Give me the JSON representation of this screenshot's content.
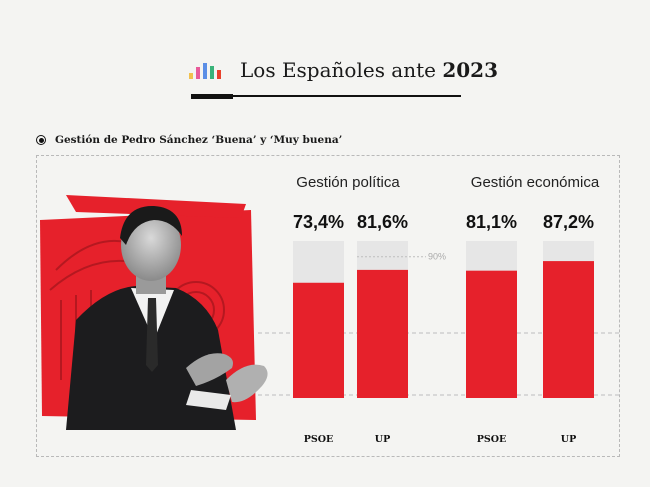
{
  "header": {
    "title_prefix": "Los Españoles ante ",
    "title_year": "2023",
    "logo_colors": [
      "#f2c14e",
      "#e85a9a",
      "#5b8ee6",
      "#39b37a",
      "#e8412c"
    ]
  },
  "subtitle": "Gestión de Pedro Sánchez ‘Buena’ y ‘Muy buena’",
  "colors": {
    "bar": "#e6212b",
    "track": "#e6e6e6",
    "reference_line": "#bdbdbd"
  },
  "chart_data": {
    "type": "bar",
    "reference": {
      "value": 90,
      "label": "90%"
    },
    "ylim": [
      0,
      100
    ],
    "groups": [
      {
        "title": "Gestión política",
        "bars": [
          {
            "category": "PSOE",
            "value": 73.4,
            "label": "73,4%"
          },
          {
            "category": "UP",
            "value": 81.6,
            "label": "81,6%"
          }
        ]
      },
      {
        "title": "Gestión económica",
        "bars": [
          {
            "category": "PSOE",
            "value": 81.1,
            "label": "81,1%"
          },
          {
            "category": "UP",
            "value": 87.2,
            "label": "87,2%"
          }
        ]
      }
    ]
  }
}
